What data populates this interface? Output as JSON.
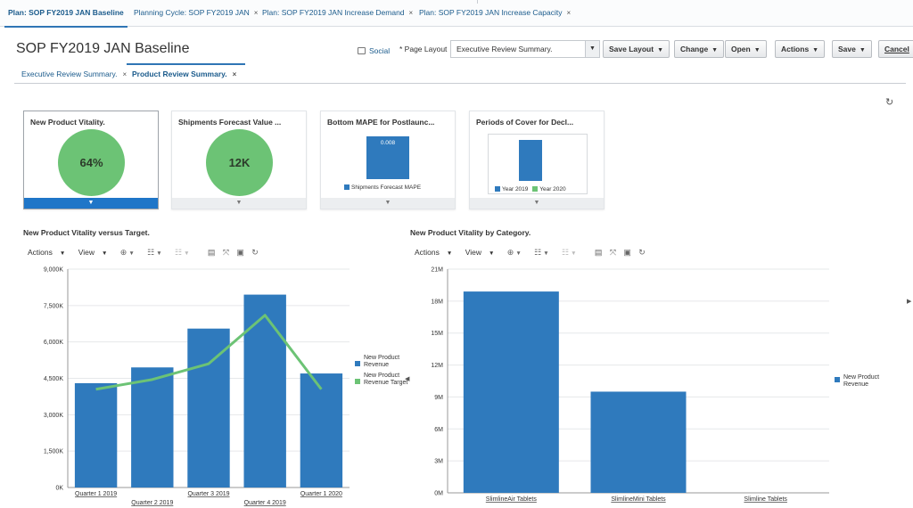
{
  "tabs": [
    {
      "label": "Plan: SOP FY2019 JAN Baseline",
      "active": true,
      "closable": false
    },
    {
      "label": "Planning Cycle: SOP FY2019 JAN",
      "closable": true
    },
    {
      "label": "Plan: SOP FY2019 JAN Increase Demand",
      "closable": true
    },
    {
      "label": "Plan: SOP FY2019 JAN Increase Capacity",
      "closable": true
    }
  ],
  "close_glyph": "×",
  "header": {
    "title": "SOP FY2019 JAN Baseline",
    "social_label": "Social",
    "page_layout_label": "* Page Layout",
    "page_layout_value": "Executive Review Summary.",
    "buttons": {
      "save_layout": "Save Layout",
      "change": "Change",
      "open": "Open",
      "actions": "Actions",
      "save": "Save",
      "cancel": "Cancel"
    }
  },
  "subtabs": [
    {
      "label": "Executive Review Summary.",
      "active": false
    },
    {
      "label": "Product Review Summary.",
      "active": true
    }
  ],
  "tiles": [
    {
      "title": "New Product Vitality.",
      "value": "64%",
      "selected": true
    },
    {
      "title": "Shipments Forecast Value ...",
      "value": "12K"
    },
    {
      "title": "Bottom MAPE for Postlaunc...",
      "bar_value": "0.008",
      "legend": "Shipments Forecast MAPE"
    },
    {
      "title": "Periods of Cover for Decl...",
      "legend": [
        "Year 2019",
        "Year 2020"
      ]
    }
  ],
  "toolbar": {
    "actions": "Actions",
    "view": "View"
  },
  "colors": {
    "bar": "#2f7abd",
    "target": "#6cc375",
    "accent": "#1f76c8"
  },
  "icons": [
    "refresh-icon",
    "social-icon",
    "chevron-down-icon",
    "print-icon",
    "freeze-icon",
    "detach-icon",
    "refresh-icon"
  ],
  "chart_data": [
    {
      "type": "bar",
      "title": "New Product Vitality versus Target.",
      "categories": [
        "Quarter 1 2019",
        "Quarter 2 2019",
        "Quarter 3 2019",
        "Quarter 4 2019",
        "Quarter 1 2020"
      ],
      "series": [
        {
          "name": "New Product Revenue",
          "type": "bar",
          "values": [
            4300,
            4950,
            6550,
            7950,
            4700
          ]
        },
        {
          "name": "New Product Revenue Target",
          "type": "line",
          "values": [
            4050,
            4450,
            5100,
            7100,
            4050
          ]
        }
      ],
      "yticks": [
        "0K",
        "1,500K",
        "3,000K",
        "4,500K",
        "6,000K",
        "7,500K",
        "9,000K"
      ],
      "ylim": [
        0,
        9000
      ],
      "legend": "right"
    },
    {
      "type": "bar",
      "title": "New Product Vitality by Category.",
      "categories": [
        "SlimlineAir Tablets",
        "SlimlineMini Tablets",
        "Slimline Tablets"
      ],
      "series": [
        {
          "name": "New Product Revenue",
          "values": [
            18900000,
            9500000,
            0
          ]
        }
      ],
      "yticks": [
        "0M",
        "3M",
        "6M",
        "9M",
        "12M",
        "15M",
        "18M",
        "21M"
      ],
      "ylim": [
        0,
        21000000
      ],
      "legend": "right"
    }
  ]
}
